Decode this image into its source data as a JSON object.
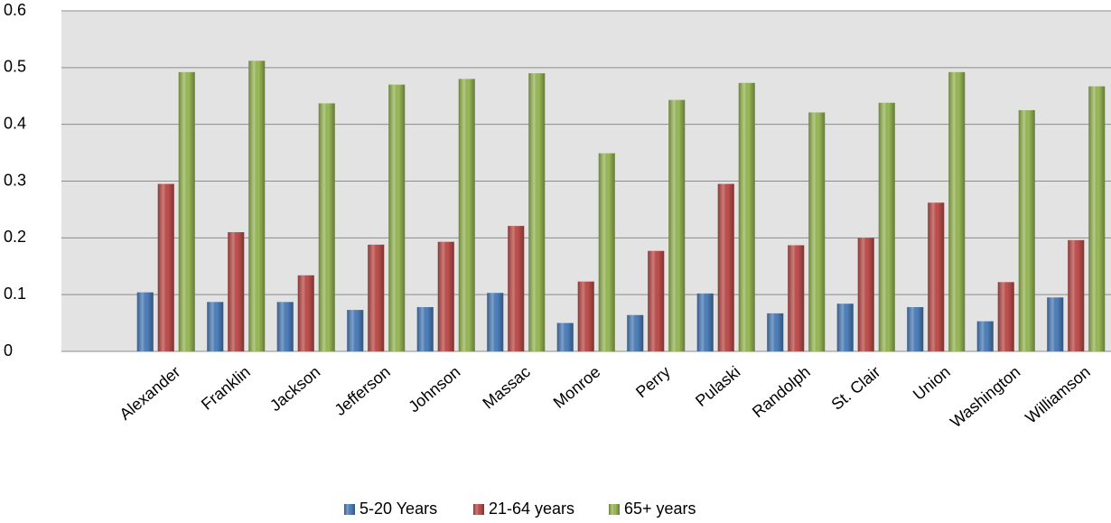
{
  "chart_data": {
    "type": "bar",
    "categories": [
      "Alexander",
      "Franklin",
      "Jackson",
      "Jefferson",
      "Johnson",
      "Massac",
      "Monroe",
      "Perry",
      "Pulaski",
      "Randolph",
      "St. Clair",
      "Union",
      "Washington",
      "Williamson"
    ],
    "series": [
      {
        "name": "5-20 Years",
        "color": "#4f81bd",
        "values": [
          0.104,
          0.087,
          0.087,
          0.073,
          0.078,
          0.103,
          0.05,
          0.064,
          0.102,
          0.067,
          0.084,
          0.078,
          0.053,
          0.095
        ]
      },
      {
        "name": "21-64 years",
        "color": "#c0504d",
        "values": [
          0.295,
          0.21,
          0.134,
          0.188,
          0.193,
          0.221,
          0.123,
          0.177,
          0.295,
          0.187,
          0.2,
          0.262,
          0.122,
          0.196
        ]
      },
      {
        "name": "65+ years",
        "color": "#9bbb59",
        "values": [
          0.492,
          0.512,
          0.437,
          0.47,
          0.48,
          0.49,
          0.349,
          0.443,
          0.473,
          0.421,
          0.438,
          0.492,
          0.425,
          0.467
        ]
      }
    ],
    "ylim": [
      0,
      0.6
    ],
    "yticks": [
      0,
      0.1,
      0.2,
      0.3,
      0.4,
      0.5,
      0.6
    ],
    "grid": true,
    "legend": "bottom"
  }
}
